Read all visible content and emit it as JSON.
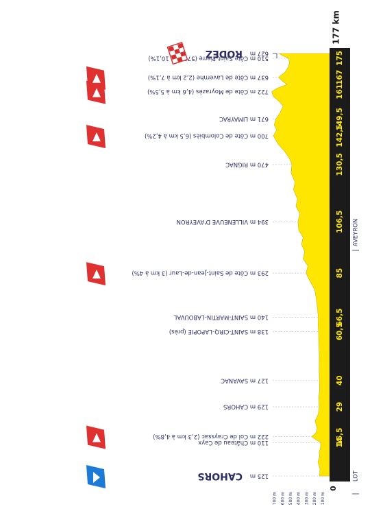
{
  "chart_data": {
    "type": "area",
    "orientation": "rotated-180",
    "title": "",
    "xlabel": "",
    "ylabel": "",
    "xlim": [
      0,
      177
    ],
    "ylim": [
      0,
      800
    ],
    "altitude_axis": {
      "ticks": [
        100,
        200,
        300,
        400,
        500,
        600,
        700
      ],
      "tick_labels": [
        "100 m",
        "200 m",
        "300 m",
        "400 m",
        "500 m",
        "600 m",
        "700 m"
      ]
    },
    "total_distance_label": "177 km",
    "zero_label": "0",
    "regions": [
      {
        "name": "LOT",
        "at_km": 0
      },
      {
        "name": "AVEYRON",
        "at_km": 102
      }
    ],
    "km_labels": [
      {
        "text": "14",
        "km": 14
      },
      {
        "text": "16,5",
        "km": 16.5
      },
      {
        "text": "29",
        "km": 29
      },
      {
        "text": "40",
        "km": 40
      },
      {
        "text": "60,5",
        "km": 60.5
      },
      {
        "text": "66,5",
        "km": 66.5
      },
      {
        "text": "85",
        "km": 85
      },
      {
        "text": "106,5",
        "km": 106.5
      },
      {
        "text": "130,5",
        "km": 130.5
      },
      {
        "text": "142,5",
        "km": 142.5
      },
      {
        "text": "149,5",
        "km": 149.5
      },
      {
        "text": "161",
        "km": 161
      },
      {
        "text": "167",
        "km": 167
      },
      {
        "text": "175",
        "km": 175
      }
    ],
    "waypoints": [
      {
        "km": 0,
        "altitude": "125 m",
        "name": "CAHORS",
        "kind": "start"
      },
      {
        "km": 14,
        "altitude": "110 m",
        "name": "Château de Cayx",
        "kind": "point"
      },
      {
        "km": 16.5,
        "altitude": "222 m",
        "name": "Col de Crayssac (2,3 km à 4,8%)",
        "kind": "climb"
      },
      {
        "km": 29,
        "altitude": "129 m",
        "name": "CAHORS",
        "kind": "town"
      },
      {
        "km": 40,
        "altitude": "127 m",
        "name": "SAVANAC",
        "kind": "town"
      },
      {
        "km": 60.5,
        "altitude": "138 m",
        "name": "SAINT-CIRQ-LAPOPIE (près)",
        "kind": "town"
      },
      {
        "km": 66.5,
        "altitude": "140 m",
        "name": "SAINT-MARTIN-LABOUVAL",
        "kind": "town"
      },
      {
        "km": 85,
        "altitude": "293 m",
        "name": "Côte de Saint-Jean-de-Laur (3 km à 4%)",
        "kind": "climb"
      },
      {
        "km": 106.5,
        "altitude": "394 m",
        "name": "VILLENEUVE D'AVEYRON",
        "kind": "town"
      },
      {
        "km": 130.5,
        "altitude": "470 m",
        "name": "RIGNAC",
        "kind": "town"
      },
      {
        "km": 142.5,
        "altitude": "700 m",
        "name": "Côte de Colombiès (6,5 km à 4,2%)",
        "kind": "climb"
      },
      {
        "km": 149.5,
        "altitude": "671 m",
        "name": "LIMAYRAC",
        "kind": "town"
      },
      {
        "km": 161,
        "altitude": "722 m",
        "name": "Côte de Moyrazès (4,6 km à 5,5%)",
        "kind": "climb"
      },
      {
        "km": 167,
        "altitude": "637 m",
        "name": "Côte de Lavernhe (2,2 km à 7,1%)",
        "kind": "climb"
      },
      {
        "km": 175,
        "altitude": "510 m",
        "name": "Côte Saint-Pierre (570 m à 10,1%)",
        "kind": "point"
      },
      {
        "km": 177,
        "altitude": "627 m",
        "name": "RODEZ",
        "kind": "finish"
      }
    ],
    "profile": [
      {
        "x": 0,
        "y": 125
      },
      {
        "x": 3,
        "y": 120
      },
      {
        "x": 6,
        "y": 145
      },
      {
        "x": 8,
        "y": 125
      },
      {
        "x": 10,
        "y": 130
      },
      {
        "x": 12,
        "y": 112
      },
      {
        "x": 14,
        "y": 110
      },
      {
        "x": 15,
        "y": 160
      },
      {
        "x": 16.5,
        "y": 222
      },
      {
        "x": 18,
        "y": 170
      },
      {
        "x": 20,
        "y": 155
      },
      {
        "x": 23,
        "y": 180
      },
      {
        "x": 26,
        "y": 140
      },
      {
        "x": 29,
        "y": 129
      },
      {
        "x": 33,
        "y": 135
      },
      {
        "x": 36,
        "y": 125
      },
      {
        "x": 40,
        "y": 127
      },
      {
        "x": 45,
        "y": 130
      },
      {
        "x": 50,
        "y": 128
      },
      {
        "x": 55,
        "y": 133
      },
      {
        "x": 60.5,
        "y": 138
      },
      {
        "x": 63,
        "y": 142
      },
      {
        "x": 66.5,
        "y": 140
      },
      {
        "x": 70,
        "y": 150
      },
      {
        "x": 74,
        "y": 165
      },
      {
        "x": 78,
        "y": 185
      },
      {
        "x": 82,
        "y": 250
      },
      {
        "x": 85,
        "y": 293
      },
      {
        "x": 88,
        "y": 270
      },
      {
        "x": 91,
        "y": 330
      },
      {
        "x": 94,
        "y": 310
      },
      {
        "x": 97,
        "y": 350
      },
      {
        "x": 100,
        "y": 330
      },
      {
        "x": 103,
        "y": 385
      },
      {
        "x": 106.5,
        "y": 394
      },
      {
        "x": 110,
        "y": 370
      },
      {
        "x": 113,
        "y": 420
      },
      {
        "x": 116,
        "y": 400
      },
      {
        "x": 120,
        "y": 450
      },
      {
        "x": 123,
        "y": 430
      },
      {
        "x": 127,
        "y": 480
      },
      {
        "x": 130.5,
        "y": 470
      },
      {
        "x": 133,
        "y": 500
      },
      {
        "x": 136,
        "y": 560
      },
      {
        "x": 139,
        "y": 640
      },
      {
        "x": 142.5,
        "y": 700
      },
      {
        "x": 145,
        "y": 660
      },
      {
        "x": 147,
        "y": 690
      },
      {
        "x": 149.5,
        "y": 671
      },
      {
        "x": 152,
        "y": 620
      },
      {
        "x": 155,
        "y": 580
      },
      {
        "x": 157,
        "y": 630
      },
      {
        "x": 159,
        "y": 700
      },
      {
        "x": 161,
        "y": 722
      },
      {
        "x": 162.5,
        "y": 650
      },
      {
        "x": 164,
        "y": 530
      },
      {
        "x": 165.5,
        "y": 590
      },
      {
        "x": 167,
        "y": 637
      },
      {
        "x": 169,
        "y": 560
      },
      {
        "x": 171,
        "y": 520
      },
      {
        "x": 173,
        "y": 500
      },
      {
        "x": 175,
        "y": 510
      },
      {
        "x": 176,
        "y": 580
      },
      {
        "x": 177,
        "y": 627
      }
    ],
    "colors": {
      "profile_fill": "#ffe600",
      "baseline_bar": "#1b1b1b",
      "km_label": "#ffe600",
      "text": "#2b2d66",
      "climb_flag": "#e03131",
      "start_flag": "#1c7bd6",
      "finish_flag": "#d32f2f"
    },
    "icons": {
      "start": "start-flag-icon",
      "climb": "climb-flag-icon",
      "finish": "finish-flag-icon"
    }
  }
}
